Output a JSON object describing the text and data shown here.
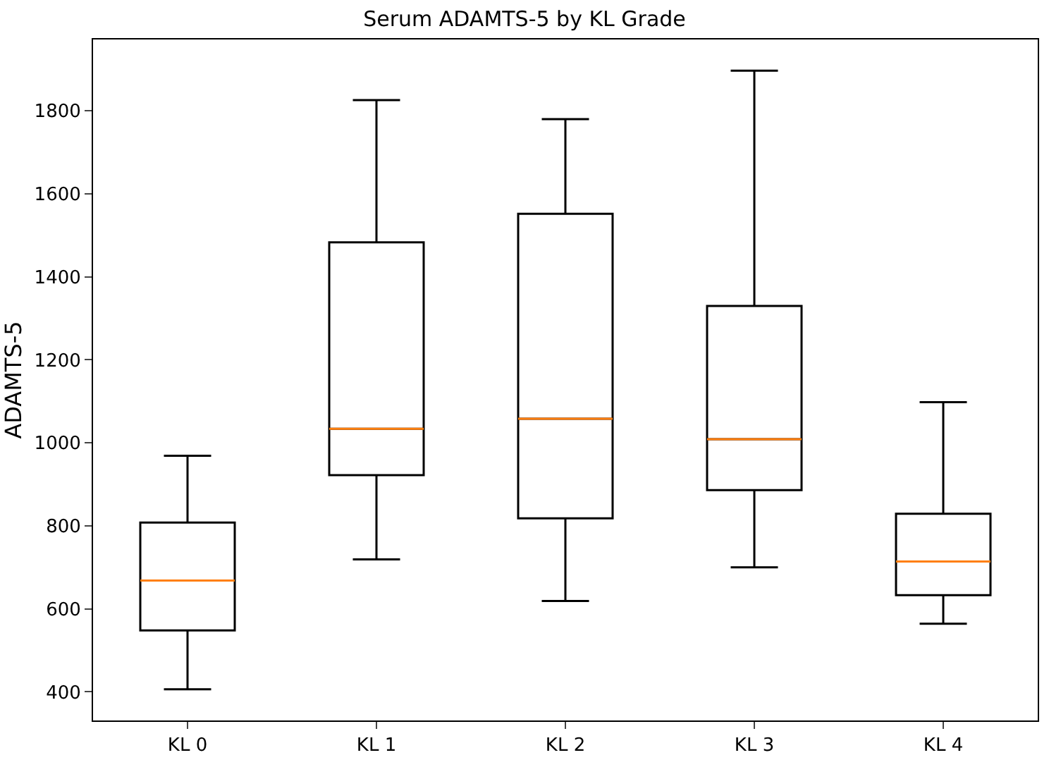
{
  "chart_data": {
    "type": "box",
    "title": "Serum ADAMTS-5 by KL Grade",
    "ylabel": "ADAMTS-5",
    "categories": [
      "KL 0",
      "KL 1",
      "KL 2",
      "KL 3",
      "KL 4"
    ],
    "series": [
      {
        "color": "#000000",
        "boxes": [
          {
            "low": 406,
            "q1": 548,
            "median": 668,
            "q3": 808,
            "high": 969
          },
          {
            "low": 719,
            "q1": 922,
            "median": 1034,
            "q3": 1483,
            "high": 1826
          },
          {
            "low": 619,
            "q1": 818,
            "median": 1058,
            "q3": 1552,
            "high": 1780
          },
          {
            "low": 700,
            "q1": 886,
            "median": 1009,
            "q3": 1330,
            "high": 1897
          },
          {
            "low": 564,
            "q1": 633,
            "median": 714,
            "q3": 829,
            "high": 1098
          }
        ]
      }
    ],
    "ylim": [
      331,
      1972
    ],
    "yticks": [
      400,
      600,
      800,
      1000,
      1200,
      1400,
      1600,
      1800
    ]
  }
}
